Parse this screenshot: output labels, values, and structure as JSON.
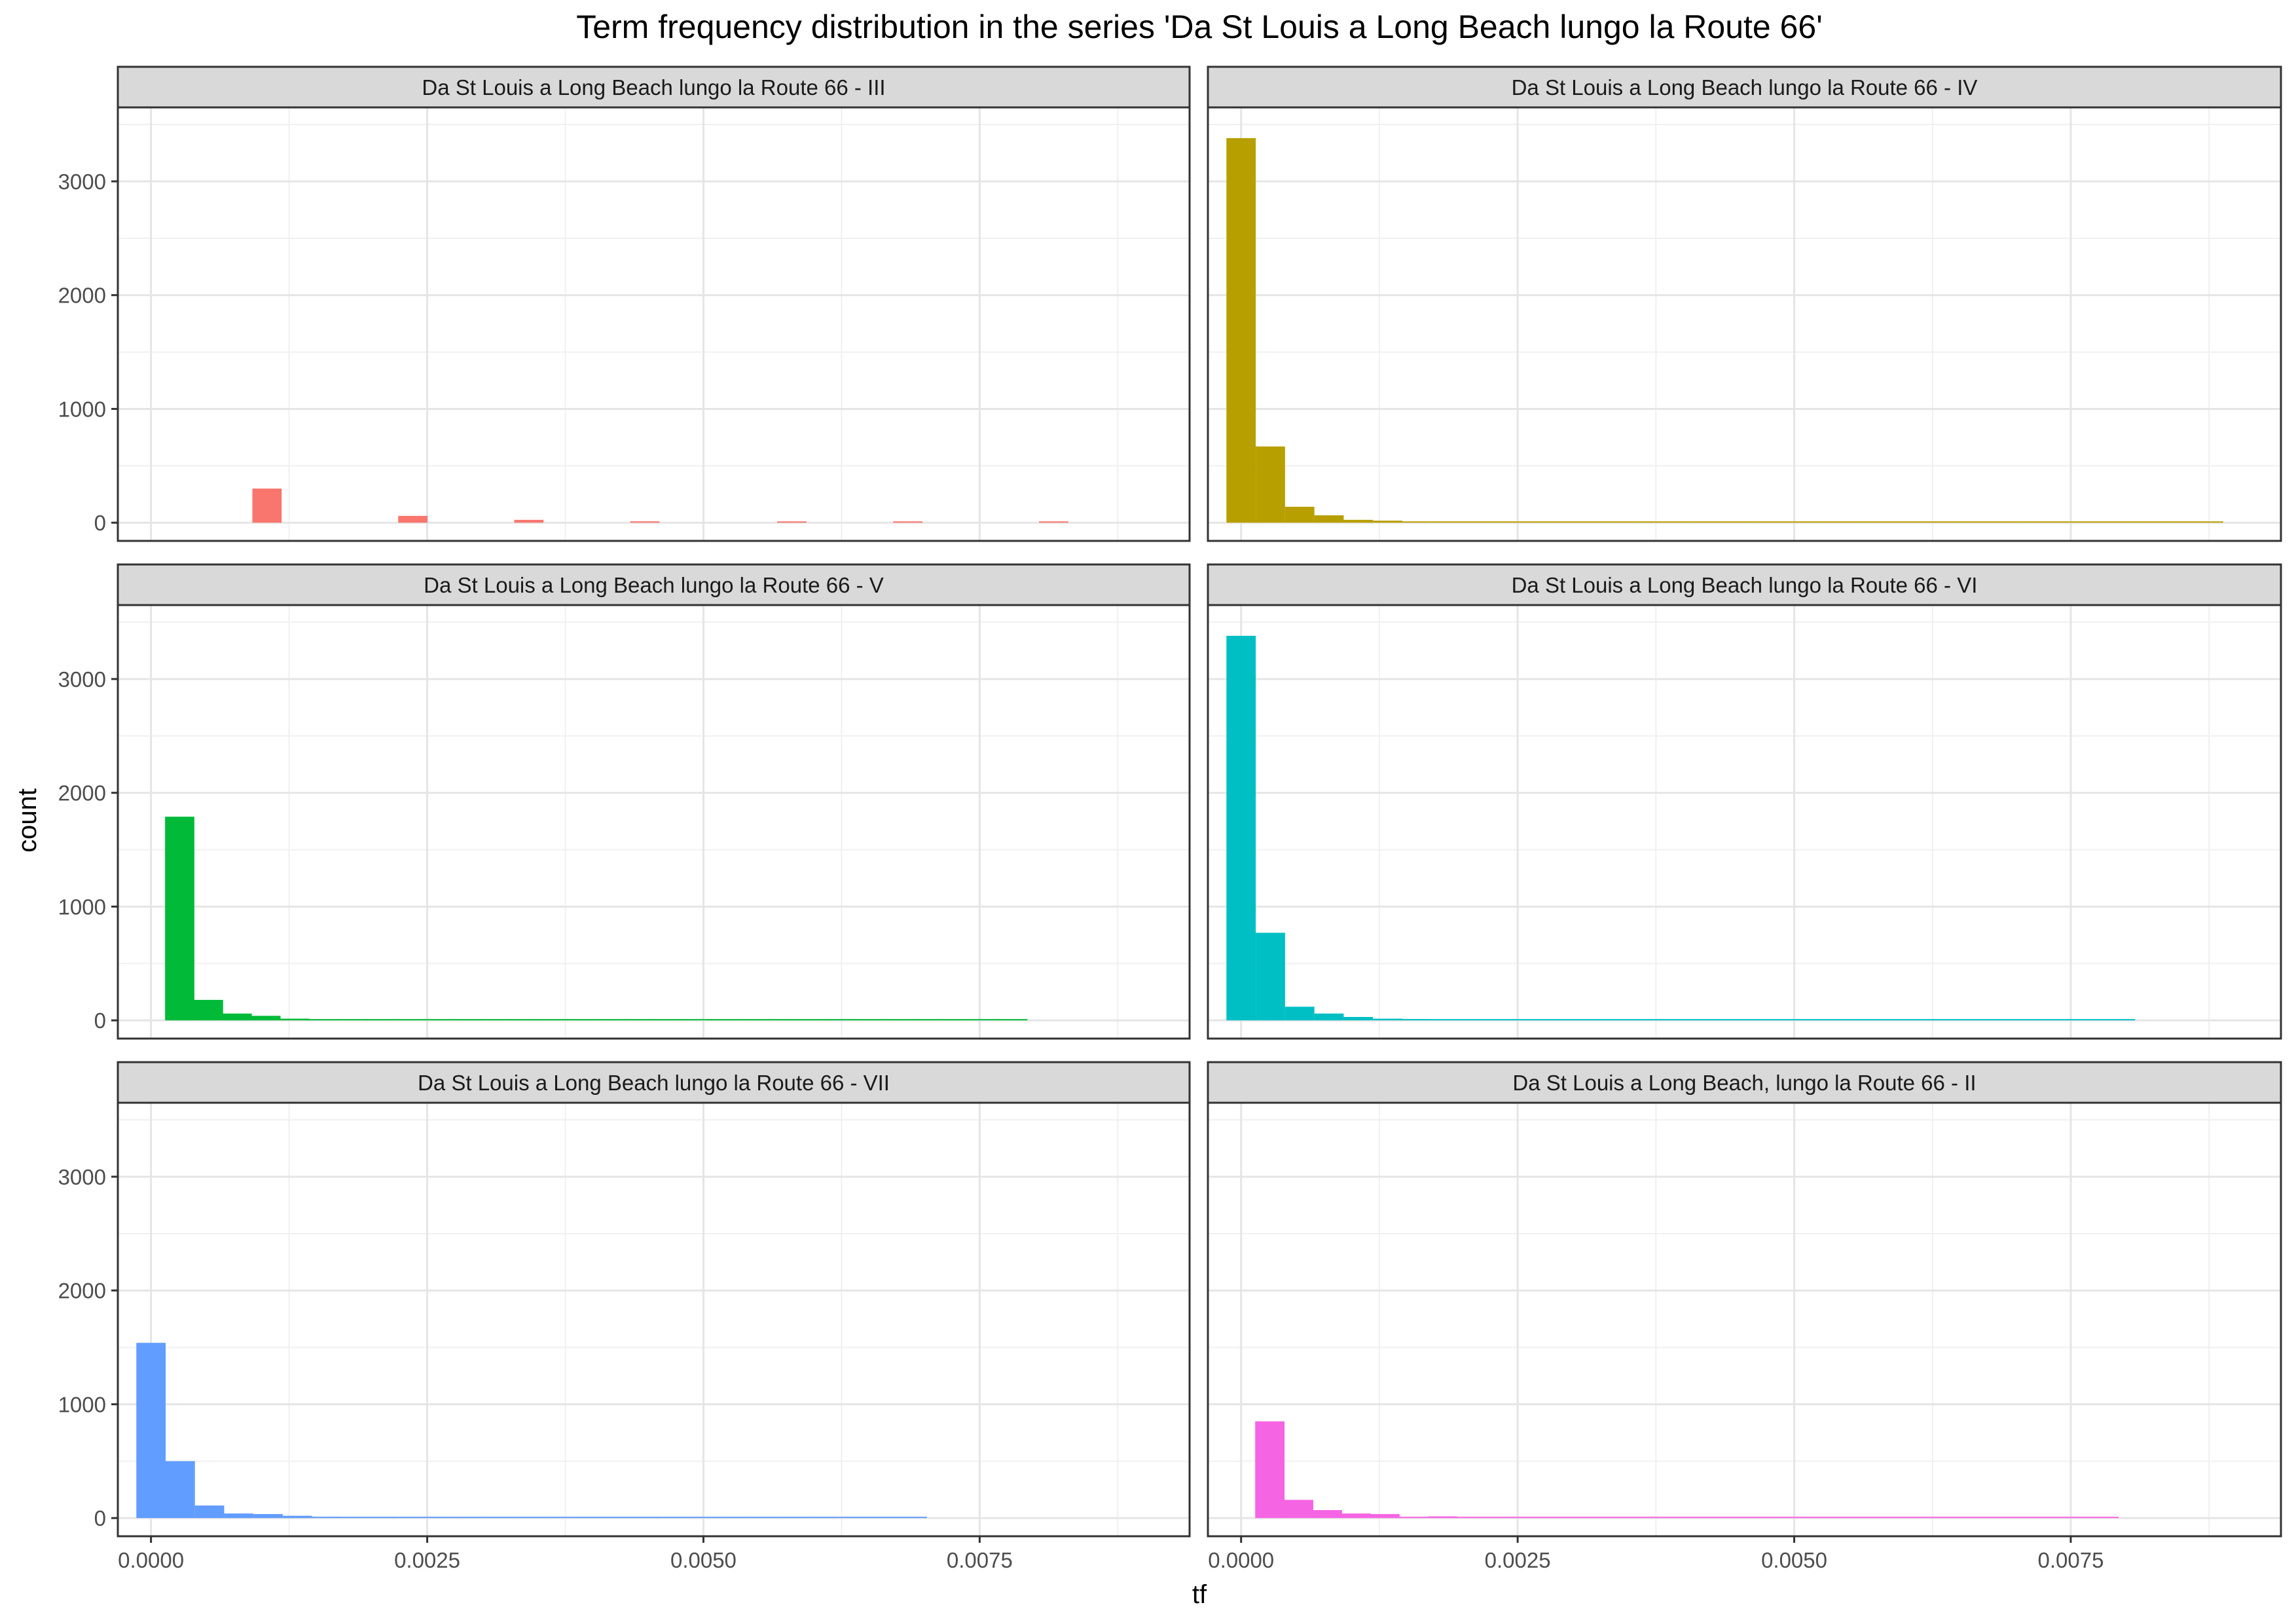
{
  "chart_data": {
    "type": "bar",
    "title": "Term frequency distribution in the series 'Da St Louis a Long Beach lungo la Route 66'",
    "xlabel": "tf",
    "ylabel": "count",
    "xlim": [
      -0.0003,
      0.0094
    ],
    "ylim": [
      -160,
      3650
    ],
    "x_ticks": [
      0,
      0.0025,
      0.005,
      0.0075
    ],
    "x_tick_labels": [
      "0.0000",
      "0.0025",
      "0.0050",
      "0.0075"
    ],
    "y_ticks": [
      0,
      1000,
      2000,
      3000
    ],
    "y_tick_labels": [
      "0",
      "1000",
      "2000",
      "3000"
    ],
    "bin_width": 0.000265,
    "grid": true,
    "legend": "none",
    "facet_layout": {
      "rows": 3,
      "cols": 2
    },
    "panels": [
      {
        "name": "Da St Louis a Long Beach lungo la Route 66 - III",
        "color": "#F8766D",
        "bins": [
          {
            "x": 0.00105,
            "count": 300
          },
          {
            "x": 0.00237,
            "count": 60
          },
          {
            "x": 0.00342,
            "count": 25
          },
          {
            "x": 0.00447,
            "count": 12
          },
          {
            "x": 0.0058,
            "count": 10
          },
          {
            "x": 0.00685,
            "count": 6
          },
          {
            "x": 0.00817,
            "count": 5
          }
        ]
      },
      {
        "name": "Da St Louis a Long Beach lungo la Route 66 - IV",
        "color": "#B79F00",
        "bins": [
          {
            "x": 0.0,
            "count": 3380
          },
          {
            "x": 0.000265,
            "count": 670
          },
          {
            "x": 0.00053,
            "count": 140
          },
          {
            "x": 0.000795,
            "count": 65
          },
          {
            "x": 0.00106,
            "count": 25
          },
          {
            "x": 0.001325,
            "count": 18
          },
          {
            "x": 0.00159,
            "count": 8
          },
          {
            "x": 0.001855,
            "count": 10
          },
          {
            "x": 0.00212,
            "count": 7
          },
          {
            "x": 0.002385,
            "count": 6
          },
          {
            "x": 0.00265,
            "count": 5
          },
          {
            "x": 0.002915,
            "count": 4
          },
          {
            "x": 0.00318,
            "count": 3
          },
          {
            "x": 0.003445,
            "count": 5
          },
          {
            "x": 0.00371,
            "count": 3
          },
          {
            "x": 0.003975,
            "count": 4
          },
          {
            "x": 0.00424,
            "count": 3
          },
          {
            "x": 0.004505,
            "count": 2
          },
          {
            "x": 0.00477,
            "count": 2
          },
          {
            "x": 0.005035,
            "count": 2
          },
          {
            "x": 0.0053,
            "count": 2
          },
          {
            "x": 0.005565,
            "count": 1
          },
          {
            "x": 0.00583,
            "count": 2
          },
          {
            "x": 0.006095,
            "count": 1
          },
          {
            "x": 0.00636,
            "count": 1
          },
          {
            "x": 0.006625,
            "count": 1
          },
          {
            "x": 0.00689,
            "count": 1
          },
          {
            "x": 0.007155,
            "count": 1
          },
          {
            "x": 0.00742,
            "count": 1
          },
          {
            "x": 0.007685,
            "count": 1
          },
          {
            "x": 0.00795,
            "count": 2
          },
          {
            "x": 0.008215,
            "count": 1
          },
          {
            "x": 0.00848,
            "count": 1
          },
          {
            "x": 0.008745,
            "count": 1
          }
        ]
      },
      {
        "name": "Da St Louis a Long Beach lungo la Route 66 - V",
        "color": "#00BA38",
        "bins": [
          {
            "x": 0.00026,
            "count": 1790
          },
          {
            "x": 0.00052,
            "count": 180
          },
          {
            "x": 0.00078,
            "count": 60
          },
          {
            "x": 0.00104,
            "count": 40
          },
          {
            "x": 0.0013,
            "count": 15
          },
          {
            "x": 0.00156,
            "count": 8
          },
          {
            "x": 0.00182,
            "count": 6
          },
          {
            "x": 0.00208,
            "count": 10
          },
          {
            "x": 0.00234,
            "count": 4
          },
          {
            "x": 0.0026,
            "count": 3
          },
          {
            "x": 0.00286,
            "count": 4
          },
          {
            "x": 0.00312,
            "count": 3
          },
          {
            "x": 0.00338,
            "count": 3
          },
          {
            "x": 0.00364,
            "count": 3
          },
          {
            "x": 0.0039,
            "count": 2
          },
          {
            "x": 0.00416,
            "count": 2
          },
          {
            "x": 0.00442,
            "count": 2
          },
          {
            "x": 0.00468,
            "count": 1
          },
          {
            "x": 0.00494,
            "count": 1
          },
          {
            "x": 0.0052,
            "count": 3
          },
          {
            "x": 0.00546,
            "count": 2
          },
          {
            "x": 0.00572,
            "count": 1
          },
          {
            "x": 0.00598,
            "count": 1
          },
          {
            "x": 0.00624,
            "count": 1
          },
          {
            "x": 0.0065,
            "count": 1
          },
          {
            "x": 0.00676,
            "count": 1
          },
          {
            "x": 0.00702,
            "count": 2
          },
          {
            "x": 0.00728,
            "count": 1
          },
          {
            "x": 0.00754,
            "count": 1
          },
          {
            "x": 0.0078,
            "count": 1
          }
        ]
      },
      {
        "name": "Da St Louis a Long Beach lungo la Route 66 - VI",
        "color": "#00BFC4",
        "bins": [
          {
            "x": 0.0,
            "count": 3380
          },
          {
            "x": 0.000265,
            "count": 770
          },
          {
            "x": 0.00053,
            "count": 120
          },
          {
            "x": 0.000795,
            "count": 60
          },
          {
            "x": 0.00106,
            "count": 30
          },
          {
            "x": 0.001325,
            "count": 15
          },
          {
            "x": 0.00159,
            "count": 12
          },
          {
            "x": 0.001855,
            "count": 8
          },
          {
            "x": 0.00212,
            "count": 6
          },
          {
            "x": 0.002385,
            "count": 4
          },
          {
            "x": 0.00265,
            "count": 4
          },
          {
            "x": 0.002915,
            "count": 3
          },
          {
            "x": 0.00318,
            "count": 5
          },
          {
            "x": 0.003445,
            "count": 2
          },
          {
            "x": 0.00371,
            "count": 3
          },
          {
            "x": 0.003975,
            "count": 2
          },
          {
            "x": 0.00424,
            "count": 2
          },
          {
            "x": 0.004505,
            "count": 2
          },
          {
            "x": 0.00477,
            "count": 2
          },
          {
            "x": 0.005035,
            "count": 1
          },
          {
            "x": 0.0053,
            "count": 1
          },
          {
            "x": 0.005565,
            "count": 1
          },
          {
            "x": 0.00583,
            "count": 1
          },
          {
            "x": 0.006095,
            "count": 1
          },
          {
            "x": 0.00636,
            "count": 1
          },
          {
            "x": 0.006625,
            "count": 1
          },
          {
            "x": 0.00689,
            "count": 1
          },
          {
            "x": 0.007155,
            "count": 1
          },
          {
            "x": 0.00742,
            "count": 1
          },
          {
            "x": 0.007685,
            "count": 2
          },
          {
            "x": 0.00795,
            "count": 1
          }
        ]
      },
      {
        "name": "Da St Louis a Long Beach lungo la Route 66 - VII",
        "color": "#619CFF",
        "bins": [
          {
            "x": 0.0,
            "count": 1540
          },
          {
            "x": 0.000265,
            "count": 500
          },
          {
            "x": 0.00053,
            "count": 110
          },
          {
            "x": 0.000795,
            "count": 40
          },
          {
            "x": 0.00106,
            "count": 35
          },
          {
            "x": 0.001325,
            "count": 20
          },
          {
            "x": 0.00159,
            "count": 12
          },
          {
            "x": 0.001855,
            "count": 8
          },
          {
            "x": 0.00212,
            "count": 6
          },
          {
            "x": 0.002385,
            "count": 4
          },
          {
            "x": 0.00265,
            "count": 3
          },
          {
            "x": 0.002915,
            "count": 6
          },
          {
            "x": 0.00318,
            "count": 3
          },
          {
            "x": 0.003445,
            "count": 2
          },
          {
            "x": 0.00371,
            "count": 2
          },
          {
            "x": 0.003975,
            "count": 2
          },
          {
            "x": 0.00424,
            "count": 3
          },
          {
            "x": 0.004505,
            "count": 2
          },
          {
            "x": 0.00477,
            "count": 2
          },
          {
            "x": 0.005035,
            "count": 3
          },
          {
            "x": 0.0053,
            "count": 1
          },
          {
            "x": 0.005565,
            "count": 2
          },
          {
            "x": 0.00583,
            "count": 1
          },
          {
            "x": 0.006095,
            "count": 1
          },
          {
            "x": 0.00636,
            "count": 1
          },
          {
            "x": 0.006625,
            "count": 1
          },
          {
            "x": 0.00689,
            "count": 1
          }
        ]
      },
      {
        "name": "Da St Louis a Long Beach, lungo la Route 66 - II",
        "color": "#F564E3",
        "bins": [
          {
            "x": 0.00026,
            "count": 850
          },
          {
            "x": 0.00052,
            "count": 160
          },
          {
            "x": 0.00078,
            "count": 70
          },
          {
            "x": 0.00104,
            "count": 40
          },
          {
            "x": 0.0013,
            "count": 35
          },
          {
            "x": 0.00156,
            "count": 8
          },
          {
            "x": 0.00182,
            "count": 15
          },
          {
            "x": 0.00208,
            "count": 10
          },
          {
            "x": 0.00234,
            "count": 6
          },
          {
            "x": 0.0026,
            "count": 5
          },
          {
            "x": 0.00286,
            "count": 4
          },
          {
            "x": 0.00312,
            "count": 3
          },
          {
            "x": 0.00338,
            "count": 2
          },
          {
            "x": 0.00364,
            "count": 3
          },
          {
            "x": 0.0039,
            "count": 4
          },
          {
            "x": 0.00416,
            "count": 2
          },
          {
            "x": 0.00442,
            "count": 2
          },
          {
            "x": 0.00468,
            "count": 2
          },
          {
            "x": 0.00494,
            "count": 1
          },
          {
            "x": 0.0052,
            "count": 1
          },
          {
            "x": 0.00546,
            "count": 1
          },
          {
            "x": 0.00572,
            "count": 1
          },
          {
            "x": 0.00598,
            "count": 2
          },
          {
            "x": 0.00624,
            "count": 1
          },
          {
            "x": 0.0065,
            "count": 1
          },
          {
            "x": 0.00676,
            "count": 1
          },
          {
            "x": 0.00702,
            "count": 1
          },
          {
            "x": 0.00728,
            "count": 1
          },
          {
            "x": 0.00754,
            "count": 1
          },
          {
            "x": 0.0078,
            "count": 1
          }
        ]
      }
    ]
  }
}
